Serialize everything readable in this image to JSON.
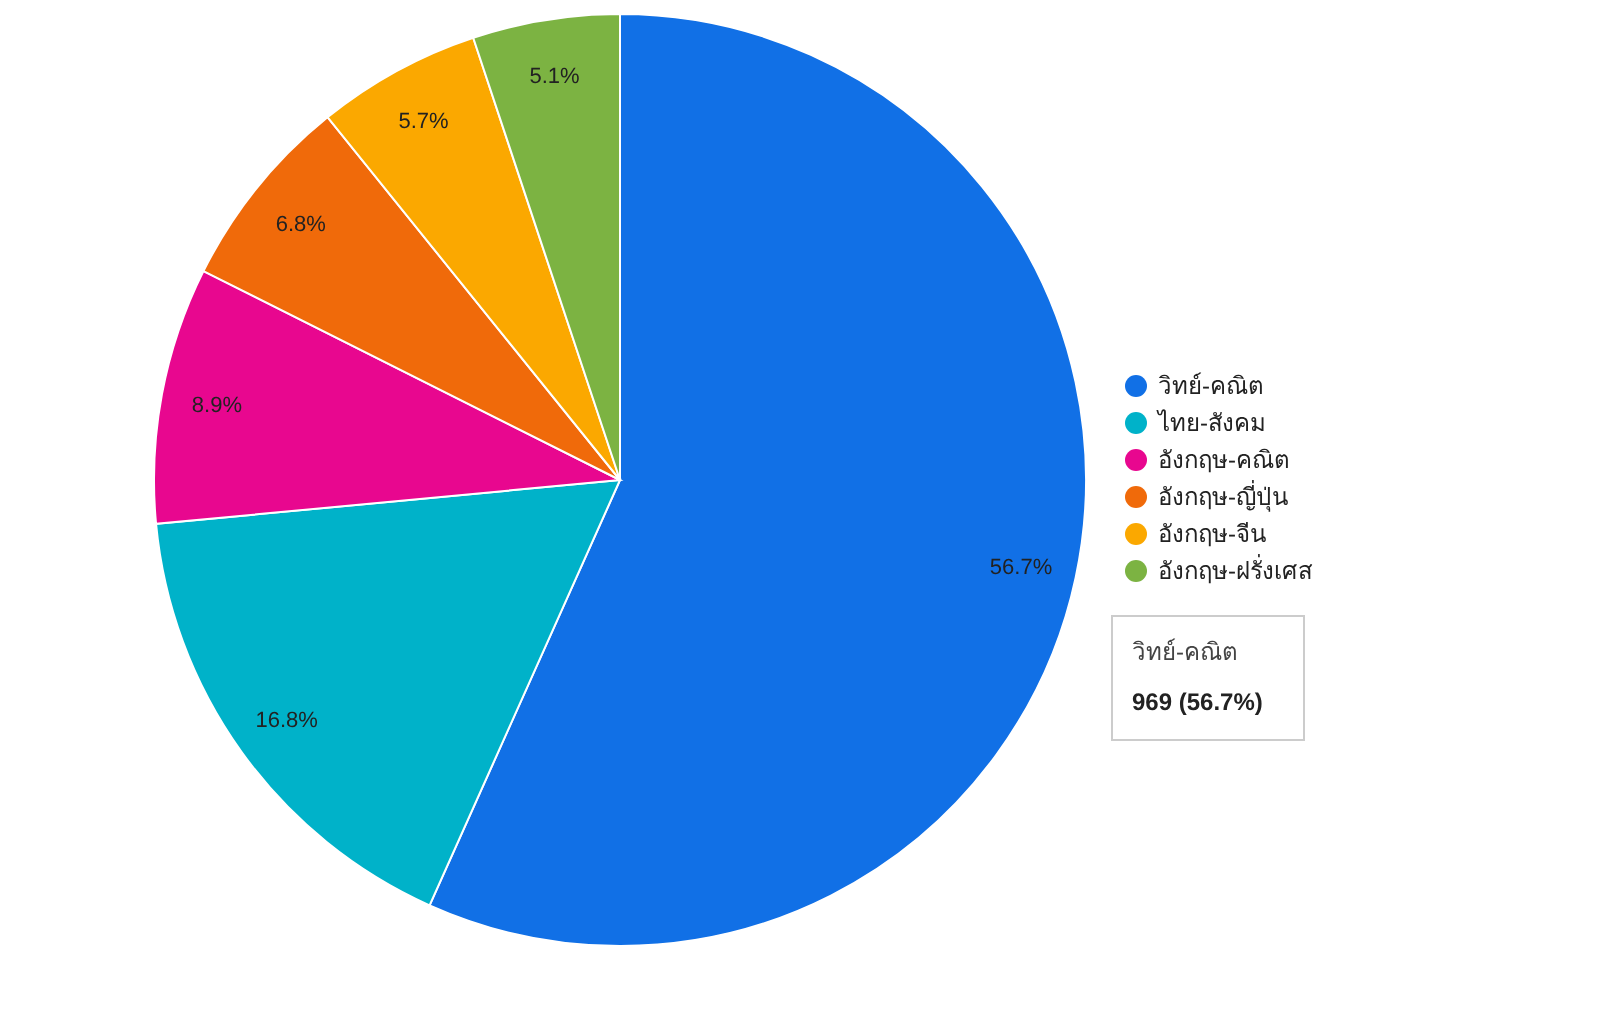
{
  "chart_data": {
    "type": "pie",
    "categories": [
      "วิทย์-คณิต",
      "ไทย-สังคม",
      "อังกฤษ-คณิต",
      "อังกฤษ-ญี่ปุ่น",
      "อังกฤษ-จีน",
      "อังกฤษ-ฝรั่งเศส"
    ],
    "values": [
      56.7,
      16.8,
      8.9,
      6.8,
      5.7,
      5.1
    ],
    "colors": [
      "#1170e6",
      "#00b2c9",
      "#e8078f",
      "#f06a0a",
      "#fba800",
      "#7cb342"
    ],
    "value_labels": [
      "56.7%",
      "16.8%",
      "8.9%",
      "6.8%",
      "5.7%",
      "5.1%"
    ],
    "legend": "right",
    "annotations": [
      "วิทย์-คณิต",
      "969 (56.7%)"
    ]
  }
}
